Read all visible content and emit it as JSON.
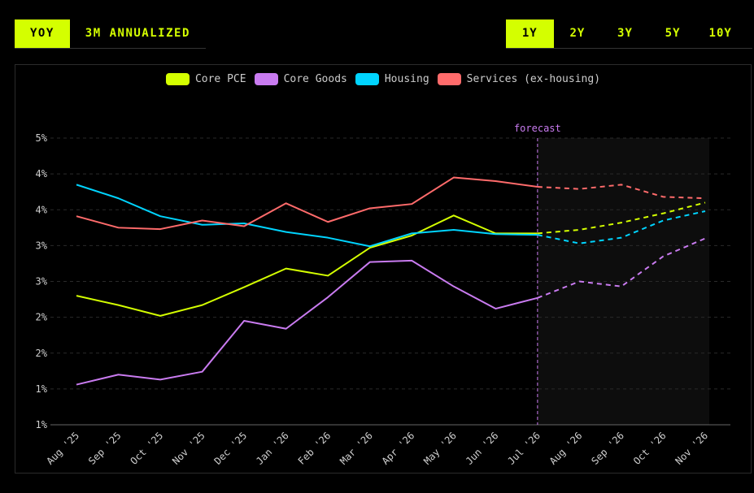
{
  "tabs_mode": [
    {
      "label": "YOY",
      "active": true
    },
    {
      "label": "3M ANNUALIZED",
      "active": false
    }
  ],
  "tabs_range": [
    {
      "label": "1Y",
      "active": true
    },
    {
      "label": "2Y",
      "active": false
    },
    {
      "label": "3Y",
      "active": false
    },
    {
      "label": "5Y",
      "active": false
    },
    {
      "label": "10Y",
      "active": false
    }
  ],
  "chart_data": {
    "type": "line",
    "categories": [
      "Aug '25",
      "Sep '25",
      "Oct '25",
      "Nov '25",
      "Dec '25",
      "Jan '26",
      "Feb '26",
      "Mar '26",
      "Apr '26",
      "May '26",
      "Jun '26",
      "Jul '26",
      "Aug '26",
      "Sep '26",
      "Oct '26",
      "Nov '26"
    ],
    "y_ticks": [
      "1%",
      "1%",
      "2%",
      "2%",
      "3%",
      "3%",
      "4%",
      "4%",
      "5%"
    ],
    "ylim": [
      1.0,
      5.0
    ],
    "forecast_label": "forecast",
    "forecast_start_index": 11,
    "grid": true,
    "legend_position": "top-center",
    "series": [
      {
        "name": "Core PCE",
        "color": "#d4ff00",
        "values": [
          2.8,
          2.67,
          2.52,
          2.67,
          2.92,
          3.18,
          3.08,
          3.47,
          3.64,
          3.92,
          3.67,
          3.67,
          3.72,
          3.82,
          3.95,
          4.1
        ]
      },
      {
        "name": "Core Goods",
        "color": "#c97bf0",
        "values": [
          1.56,
          1.7,
          1.63,
          1.74,
          2.45,
          2.34,
          2.78,
          3.27,
          3.29,
          2.93,
          2.62,
          2.77,
          3.0,
          2.93,
          3.35,
          3.6
        ]
      },
      {
        "name": "Housing",
        "color": "#00d4ff",
        "values": [
          4.35,
          4.16,
          3.91,
          3.79,
          3.81,
          3.69,
          3.61,
          3.49,
          3.67,
          3.72,
          3.66,
          3.65,
          3.53,
          3.61,
          3.85,
          3.98
        ]
      },
      {
        "name": "Services (ex-housing)",
        "color": "#ff6b6b",
        "values": [
          3.91,
          3.75,
          3.73,
          3.85,
          3.77,
          4.09,
          3.83,
          4.02,
          4.08,
          4.45,
          4.4,
          4.32,
          4.29,
          4.35,
          4.18,
          4.16
        ]
      }
    ]
  }
}
